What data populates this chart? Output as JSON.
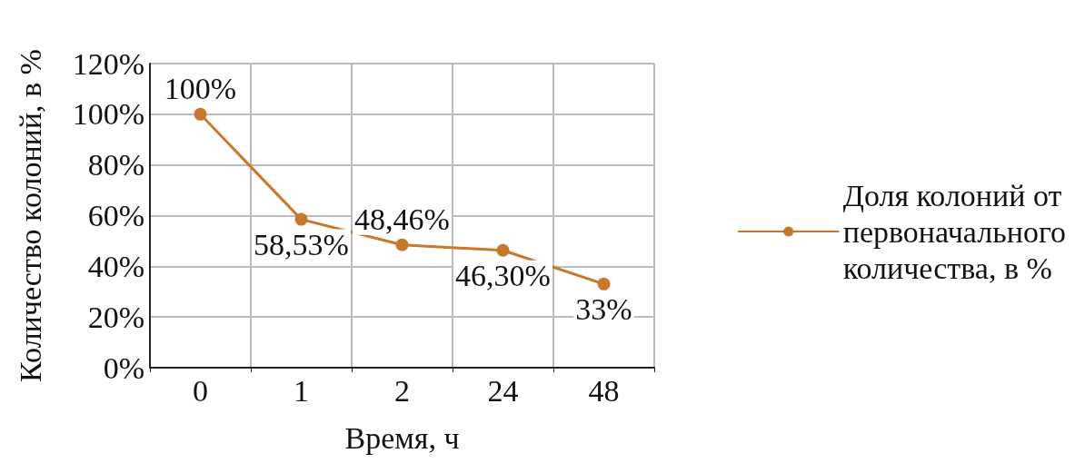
{
  "chart_data": {
    "type": "line",
    "xlabel": "Время, ч",
    "ylabel": "Количество колоний, в %",
    "categories": [
      "0",
      "1",
      "2",
      "24",
      "48"
    ],
    "series": [
      {
        "name": "Доля колоний от первоначального количества, в %",
        "color": "#c8782a",
        "values": [
          100,
          58.53,
          48.46,
          46.3,
          33
        ],
        "value_labels": [
          "100%",
          "58,53%",
          "48,46%",
          "46,30%",
          "33%"
        ]
      }
    ],
    "ylim": [
      0,
      120
    ],
    "yticks": [
      {
        "value": 0,
        "label": "0%"
      },
      {
        "value": 20,
        "label": "20%"
      },
      {
        "value": 40,
        "label": "40%"
      },
      {
        "value": 60,
        "label": "60%"
      },
      {
        "value": 80,
        "label": "80%"
      },
      {
        "value": 100,
        "label": "100%"
      },
      {
        "value": 120,
        "label": "120%"
      }
    ],
    "grid": true,
    "legend": "right",
    "marker": "circle",
    "line_style": "solid"
  }
}
